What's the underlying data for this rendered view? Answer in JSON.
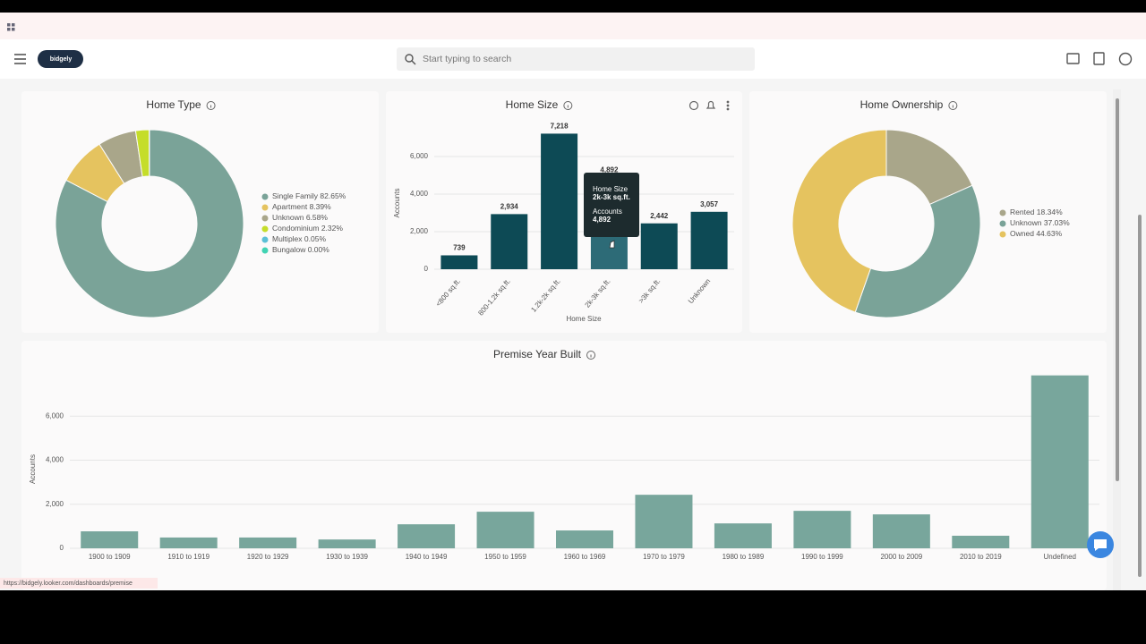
{
  "header": {
    "logo": "bidgely",
    "search_placeholder": "Start typing to search"
  },
  "status_url": "https://bidgely.looker.com/dashboards/premise",
  "chart_data": [
    {
      "type": "pie",
      "title": "Home Type",
      "categories": [
        "Single Family",
        "Apartment",
        "Unknown",
        "Condominium",
        "Multiplex",
        "Bungalow"
      ],
      "values": [
        82.65,
        8.39,
        6.58,
        2.32,
        0.05,
        0.0
      ],
      "value_labels": [
        "82.65%",
        "8.39%",
        "6.58%",
        "2.32%",
        "0.05%",
        "0.00%"
      ],
      "colors": [
        "#7aa398",
        "#e5c35f",
        "#a9a68a",
        "#c5dd2a",
        "#5bc0d6",
        "#41d3b3"
      ],
      "legend": "right"
    },
    {
      "type": "bar",
      "title": "Home Size",
      "x_label": "Home Size",
      "y_label": "Accounts",
      "categories": [
        "<800 sq.ft.",
        "800-1.2k sq.ft.",
        "1.2k-2k sq.ft.",
        "2k-3k sq.ft.",
        ">3k sq.ft.",
        "Unknown"
      ],
      "values": [
        739,
        2934,
        7218,
        4892,
        2442,
        3057
      ],
      "value_labels": [
        "739",
        "2,934",
        "7,218",
        "4,892",
        "2,442",
        "3,057"
      ],
      "color": "#0d4a55",
      "highlight_color": "#2d6b77",
      "ylim": [
        0,
        8000
      ],
      "yticks": [
        0,
        {
          "value": 2000,
          "label": "2,000"
        },
        {
          "value": 4000,
          "label": "4,000"
        },
        {
          "value": 6000,
          "label": "6,000"
        }
      ],
      "grid": true
    },
    {
      "type": "pie",
      "title": "Home Ownership",
      "categories": [
        "Rented",
        "Unknown",
        "Owned"
      ],
      "values": [
        18.34,
        37.03,
        44.63
      ],
      "value_labels": [
        "18.34%",
        "37.03%",
        "44.63%"
      ],
      "colors": [
        "#a9a68a",
        "#7aa398",
        "#e5c35f"
      ],
      "legend": "right"
    },
    {
      "type": "bar",
      "title": "Premise Year Built",
      "y_label": "Accounts",
      "categories": [
        "1900 to 1909",
        "1910 to 1919",
        "1920 to 1929",
        "1930 to 1939",
        "1940 to 1949",
        "1950 to 1959",
        "1960 to 1969",
        "1970 to 1979",
        "1980 to 1989",
        "1990 to 1999",
        "2000 to 2009",
        "2010 to 2019",
        "Undefined"
      ],
      "values": [
        770,
        490,
        490,
        400,
        1090,
        1660,
        810,
        2430,
        1130,
        1700,
        1540,
        570,
        7850
      ],
      "color": "#78a69c",
      "ylim": [
        0,
        8000
      ],
      "yticks": [
        0,
        {
          "value": 2000,
          "label": "2,000"
        },
        {
          "value": 4000,
          "label": "4,000"
        },
        {
          "value": 6000,
          "label": "6,000"
        }
      ],
      "grid": true
    }
  ]
}
